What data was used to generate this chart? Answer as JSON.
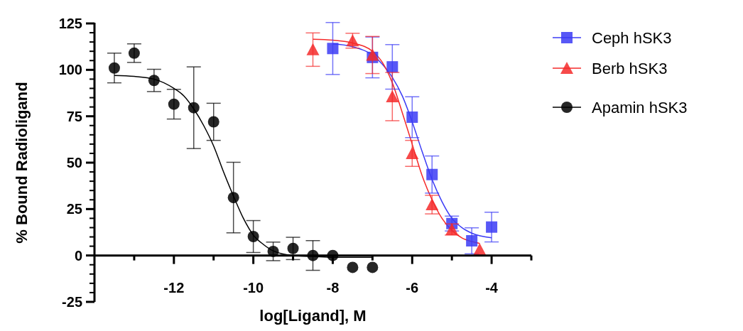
{
  "chart_data": {
    "type": "scatter",
    "xlabel": "log[Ligand], M",
    "ylabel": "% Bound Radioligand",
    "xlim": [
      -14,
      -3
    ],
    "xticks": [
      {
        "value": -13,
        "label": null
      },
      -12,
      {
        "value": -11,
        "label": null
      },
      -10,
      {
        "value": -9,
        "label": null
      },
      -8,
      {
        "value": -7,
        "label": null
      },
      -6,
      {
        "value": -5,
        "label": null
      },
      -4,
      {
        "value": -3,
        "label": null
      }
    ],
    "ylim": [
      -25,
      125
    ],
    "yticks": [
      -25,
      {
        "value": -20,
        "label": null
      },
      {
        "value": -15,
        "label": null
      },
      {
        "value": -10,
        "label": null
      },
      {
        "value": -5,
        "label": null
      },
      0,
      {
        "value": 5,
        "label": null
      },
      {
        "value": 10,
        "label": null
      },
      {
        "value": 15,
        "label": null
      },
      {
        "value": 20,
        "label": null
      },
      25,
      {
        "value": 30,
        "label": null
      },
      {
        "value": 35,
        "label": null
      },
      {
        "value": 40,
        "label": null
      },
      {
        "value": 45,
        "label": null
      },
      50,
      {
        "value": 55,
        "label": null
      },
      {
        "value": 60,
        "label": null
      },
      {
        "value": 65,
        "label": null
      },
      {
        "value": 70,
        "label": null
      },
      75,
      {
        "value": 80,
        "label": null
      },
      {
        "value": 85,
        "label": null
      },
      {
        "value": 90,
        "label": null
      },
      {
        "value": 95,
        "label": null
      },
      100,
      {
        "value": 105,
        "label": null
      },
      {
        "value": 110,
        "label": null
      },
      {
        "value": 115,
        "label": null
      },
      {
        "value": 120,
        "label": null
      },
      125
    ],
    "grid": false,
    "legend": "right",
    "series": [
      {
        "name": "Ceph hSK3",
        "color": "#3b3bf5",
        "marker": "square",
        "x": [
          -8,
          -7,
          -6.5,
          -6,
          -5.5,
          -5,
          -4.5,
          -4
        ],
        "values": [
          111.5,
          106.7,
          101.6,
          74.5,
          43.6,
          17.2,
          7.9,
          15.3
        ],
        "errors": [
          14,
          11,
          12,
          11,
          10,
          4,
          7,
          8
        ]
      },
      {
        "name": "Berb hSK3",
        "color": "#f52a2a",
        "marker": "triangle",
        "x": [
          -8.5,
          -7.5,
          -7,
          -6.5,
          -6,
          -5.5,
          -5,
          -4.3
        ],
        "values": [
          110.9,
          115.7,
          108,
          85.6,
          55,
          27.4,
          14,
          3.2
        ],
        "errors": [
          9,
          4,
          10,
          13,
          7,
          5,
          3,
          null
        ]
      },
      {
        "name": "Apamin hSK3",
        "color": "#000000",
        "marker": "circle",
        "x": [
          -13.5,
          -13,
          -12.5,
          -12,
          -11.5,
          -11,
          -10.5,
          -10,
          -9.5,
          -9,
          -8.5,
          -8,
          -7.5,
          -7
        ],
        "values": [
          101,
          109,
          94.3,
          81.5,
          79.6,
          72,
          31.2,
          10.2,
          2.2,
          3.8,
          0,
          0,
          -6.4,
          -6.4
        ],
        "errors": [
          8,
          5,
          6,
          8,
          22,
          10,
          19,
          8.6,
          5,
          6,
          8,
          null,
          null,
          null
        ]
      },
      {
        "type": "line",
        "color": "#3b3bf5",
        "marker": "none",
        "x": [
          -8,
          -7.5,
          -7,
          -6.75,
          -6.5,
          -6.25,
          -6,
          -5.75,
          -5.5,
          -5.25,
          -5,
          -4.75,
          -4.5,
          -4
        ],
        "values": [
          114,
          112.5,
          108,
          103,
          96,
          86,
          72,
          56,
          41,
          29,
          20,
          15,
          12,
          9.5
        ]
      },
      {
        "type": "line",
        "color": "#f52a2a",
        "marker": "none",
        "x": [
          -8.5,
          -8,
          -7.5,
          -7,
          -6.75,
          -6.5,
          -6.25,
          -6,
          -5.75,
          -5.5,
          -5.25,
          -5,
          -4.75,
          -4.5,
          -4.3
        ],
        "values": [
          116.5,
          116,
          114.5,
          110,
          104,
          93,
          77,
          60,
          43,
          30,
          20,
          13.5,
          9.5,
          7.5,
          6.5
        ]
      },
      {
        "type": "line",
        "color": "#000000",
        "marker": "none",
        "x": [
          -13.5,
          -13,
          -12.5,
          -12,
          -11.75,
          -11.5,
          -11.25,
          -11,
          -10.75,
          -10.5,
          -10.25,
          -10,
          -9.75,
          -9.5,
          -9,
          -8.5,
          -8,
          -7
        ],
        "values": [
          97,
          96.5,
          95,
          90,
          86,
          79,
          70,
          59,
          45,
          32,
          20,
          11,
          6,
          2.5,
          0,
          -0.5,
          -1,
          -1
        ]
      }
    ]
  }
}
